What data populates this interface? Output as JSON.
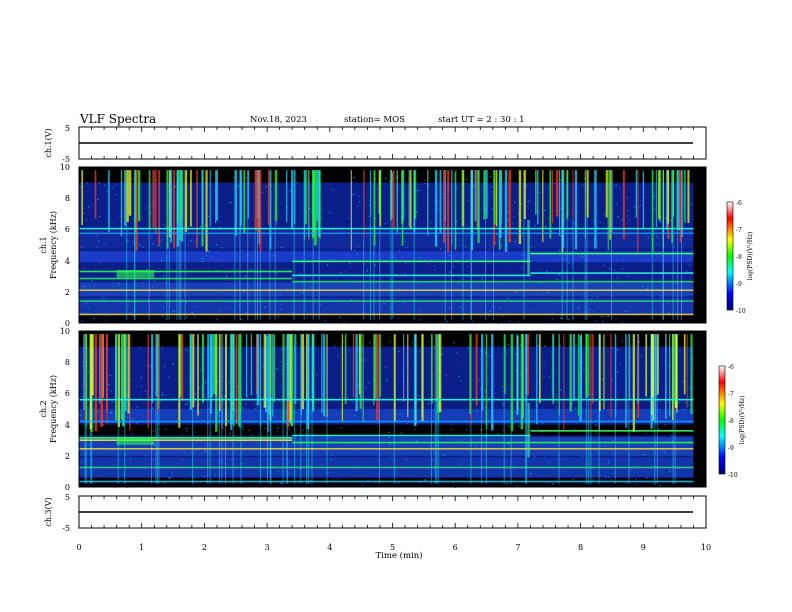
{
  "header": {
    "title": "VLF Spectra",
    "date": "Nov.18, 2023",
    "station": "station= MOS",
    "start_ut": "start  UT =   2  : 30 : 1"
  },
  "chart_data": [
    {
      "type": "line",
      "panel": "ch1-voltage",
      "ylabel": "ch.1(V)",
      "ylim": [
        -5,
        5
      ],
      "yticks": [
        "5",
        "-5"
      ],
      "x": [
        0,
        9.8
      ],
      "values": [
        0,
        0
      ]
    },
    {
      "type": "heatmap",
      "panel": "ch1-spectrogram",
      "ylabel_line1": "ch.1",
      "ylabel_line2": "Frequency (kHz)",
      "ylim": [
        0,
        10
      ],
      "yticks": [
        "10",
        "8",
        "6",
        "4",
        "2",
        "0"
      ],
      "xlim": [
        0,
        9.8
      ],
      "colorbar": {
        "label": "log(PSD)(V²/Hz)",
        "range": [
          -10,
          -6
        ],
        "ticks": [
          "-6",
          "-7",
          "-8",
          "-9",
          "-10"
        ]
      },
      "band_edges_khz": [
        2.6,
        3.2,
        4.2,
        4.6,
        6.0
      ],
      "tone_step_times_min": [
        3.4,
        7.2
      ]
    },
    {
      "type": "heatmap",
      "panel": "ch2-spectrogram",
      "ylabel_line1": "ch.2",
      "ylabel_line2": "Frequency (kHz)",
      "ylim": [
        0,
        10
      ],
      "yticks": [
        "10",
        "8",
        "6",
        "4",
        "2",
        "0"
      ],
      "xlim": [
        0,
        9.8
      ],
      "colorbar": {
        "label": "log(PSD)(V²/Hz)",
        "range": [
          -10,
          -6
        ],
        "ticks": [
          "-6",
          "-7",
          "-8",
          "-9",
          "-10"
        ]
      },
      "band_edges_khz": [
        2.9,
        3.3,
        4.1,
        5.0,
        5.6
      ],
      "tone_step_times_min": [
        3.4,
        7.2
      ]
    },
    {
      "type": "line",
      "panel": "ch3-voltage",
      "ylabel": "ch.3(V)",
      "ylim": [
        -5,
        5
      ],
      "yticks": [
        "5",
        "-5"
      ],
      "x": [
        0,
        9.8
      ],
      "values": [
        0,
        0
      ]
    }
  ],
  "xaxis": {
    "label": "Time  (min)",
    "ticks": [
      "0",
      "1",
      "2",
      "3",
      "4",
      "5",
      "6",
      "7",
      "8",
      "9",
      "10"
    ],
    "range": [
      0,
      10
    ]
  },
  "colors": {
    "background": "#ffffff",
    "axis": "#000000"
  }
}
